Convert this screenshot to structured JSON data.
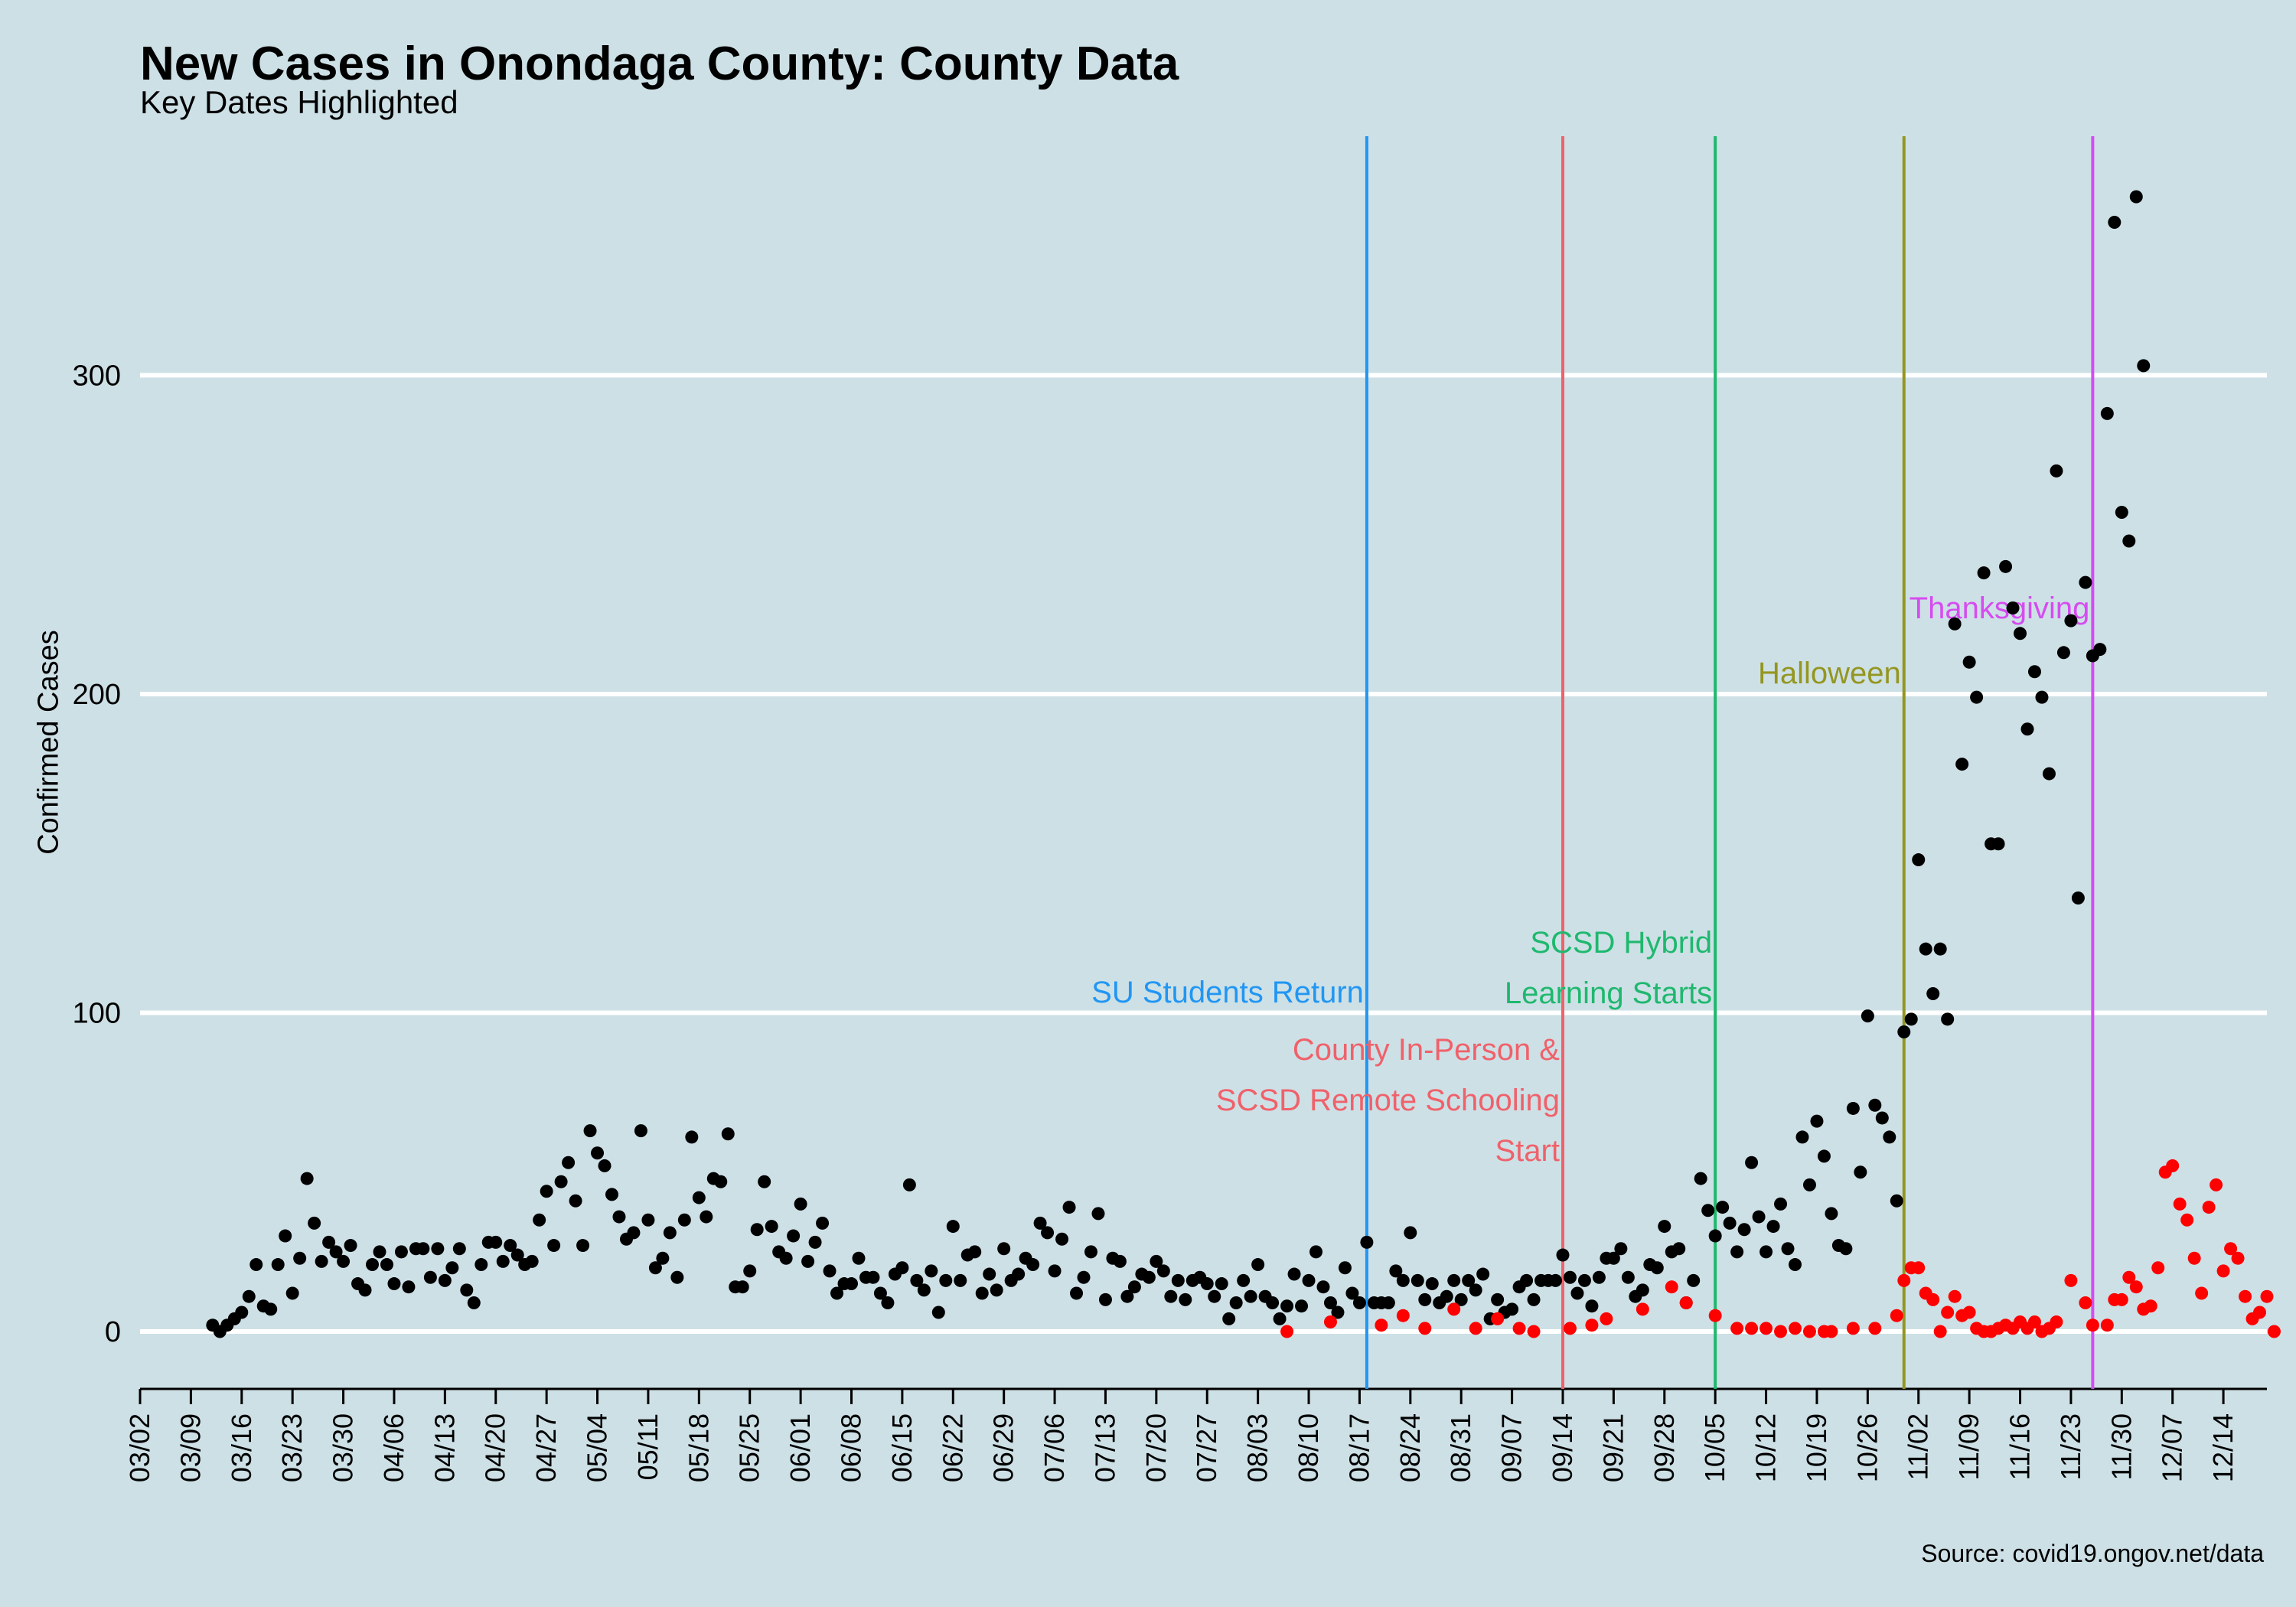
{
  "chart_data": {
    "type": "scatter",
    "title": "New Cases in Onondaga County: County Data",
    "subtitle": "Key Dates Highlighted",
    "ylabel": "Confirmed Cases",
    "xlabel": "",
    "source": "Source: covid19.ongov.net/data",
    "ylim": [
      -18,
      375
    ],
    "xlim": [
      "2020-03-02",
      "2020-12-20"
    ],
    "y_ticks": [
      0,
      100,
      200,
      300
    ],
    "x_ticks": [
      "03/02",
      "03/09",
      "03/16",
      "03/23",
      "03/30",
      "04/06",
      "04/13",
      "04/20",
      "04/27",
      "05/04",
      "05/11",
      "05/18",
      "05/25",
      "06/01",
      "06/08",
      "06/15",
      "06/22",
      "06/29",
      "07/06",
      "07/13",
      "07/20",
      "07/27",
      "08/03",
      "08/10",
      "08/17",
      "08/24",
      "08/31",
      "09/07",
      "09/14",
      "09/21",
      "09/28",
      "10/05",
      "10/12",
      "10/19",
      "10/26",
      "11/02",
      "11/09",
      "11/16",
      "11/23",
      "11/30",
      "12/07",
      "12/14"
    ],
    "grid": "horizontal",
    "colors": {
      "background": "#cde0e6",
      "gridline": "#ffffff",
      "total_cases": "#000000",
      "second_series": "#ff0000"
    },
    "series": [
      {
        "start_date": "2020-03-12",
        "values": [
          2,
          0,
          2,
          4,
          6,
          11,
          21,
          8,
          7,
          21,
          30,
          12,
          23,
          48,
          34,
          22,
          28,
          25,
          22,
          27,
          15,
          13,
          21,
          25,
          21,
          15,
          25,
          14,
          26,
          26,
          17,
          26,
          16,
          20,
          26,
          13,
          9,
          21,
          28,
          28,
          22,
          27,
          24,
          21,
          22,
          35,
          44,
          27,
          47,
          53,
          41,
          27,
          63,
          56,
          52,
          43,
          36,
          29,
          31,
          63,
          35,
          20,
          23,
          31,
          17,
          35,
          61,
          42,
          36,
          48,
          47,
          62,
          14,
          14,
          19,
          32,
          47,
          33,
          25,
          23,
          30,
          40,
          22,
          28,
          34,
          19,
          12,
          15,
          15,
          23,
          17,
          17,
          12,
          9,
          18,
          20,
          46,
          16,
          13,
          19,
          6,
          16,
          33,
          16,
          24,
          25,
          12,
          18,
          13,
          26,
          16,
          18,
          23,
          21,
          34,
          31,
          19,
          29,
          39,
          12,
          17,
          25,
          37,
          10,
          23,
          22,
          11,
          14,
          18,
          17,
          22,
          19,
          11,
          16,
          10,
          16,
          17,
          15,
          11,
          15,
          4,
          9,
          16,
          11,
          21,
          11,
          9,
          4,
          8,
          18,
          8,
          16,
          25,
          14,
          9,
          6,
          20,
          12,
          9,
          28,
          9,
          9,
          9,
          19,
          16,
          31,
          16,
          10,
          15,
          9,
          11,
          16,
          10,
          16,
          13,
          18,
          4,
          10,
          6,
          7,
          14,
          16,
          10,
          16,
          16,
          16,
          24,
          17,
          12,
          16,
          8,
          17,
          23,
          23,
          26,
          17,
          11,
          13,
          21,
          20,
          33,
          25,
          26,
          9,
          16,
          48,
          38,
          30,
          39,
          34,
          25,
          32,
          53,
          36,
          25,
          33,
          40,
          26,
          21,
          61,
          46,
          66,
          55,
          37,
          27,
          26,
          70,
          50,
          99,
          71,
          67,
          61,
          41,
          94,
          98,
          148,
          120,
          106,
          120,
          98,
          222,
          178,
          210,
          199,
          238,
          153,
          153,
          240,
          227,
          219,
          189,
          207,
          199,
          175,
          270,
          213,
          223,
          136,
          235,
          212,
          214,
          288,
          348,
          257,
          248,
          356,
          303
        ]
      },
      {
        "start_date": "2020-08-07",
        "values": [
          0,
          null,
          null,
          null,
          null,
          null,
          3,
          null,
          null,
          null,
          null,
          null,
          null,
          2,
          null,
          null,
          5,
          null,
          null,
          1,
          null,
          null,
          null,
          7,
          null,
          null,
          1,
          null,
          null,
          4,
          null,
          null,
          1,
          null,
          0,
          null,
          null,
          null,
          null,
          1,
          null,
          null,
          2,
          null,
          4,
          null,
          null,
          null,
          null,
          7,
          null,
          null,
          null,
          14,
          null,
          9,
          null,
          null,
          null,
          5,
          null,
          null,
          1,
          null,
          1,
          null,
          1,
          null,
          0,
          null,
          1,
          null,
          0,
          null,
          0,
          0,
          null,
          null,
          1,
          null,
          null,
          1,
          null,
          null,
          5,
          16,
          20,
          20,
          12,
          10,
          0,
          6,
          11,
          5,
          6,
          1,
          0,
          0,
          1,
          2,
          1,
          3,
          1,
          3,
          0,
          1,
          3,
          null,
          16,
          null,
          9,
          2,
          null,
          2,
          10,
          10,
          17,
          14,
          7,
          8,
          20,
          50,
          52,
          40,
          35,
          23,
          12,
          39,
          46,
          19,
          26,
          23,
          11,
          4,
          6,
          11,
          0,
          null,
          null,
          null,
          null,
          11,
          2,
          0,
          1
        ]
      }
    ],
    "key_dates": [
      {
        "date": "2020-08-18",
        "label_lines": [
          "SU Students Return"
        ],
        "color": "#2196f3"
      },
      {
        "date": "2020-09-14",
        "label_lines": [
          "County In-Person &",
          "SCSD Remote Schooling",
          "Start"
        ],
        "color": "#f0616a"
      },
      {
        "date": "2020-10-05",
        "label_lines": [
          "SCSD Hybrid",
          "Learning Starts"
        ],
        "color": "#1fb86e"
      },
      {
        "date": "2020-10-31",
        "label_lines": [
          "Halloween"
        ],
        "color": "#949620"
      },
      {
        "date": "2020-11-26",
        "label_lines": [
          "Thanksgiving"
        ],
        "color": "#d64cf0"
      }
    ]
  }
}
